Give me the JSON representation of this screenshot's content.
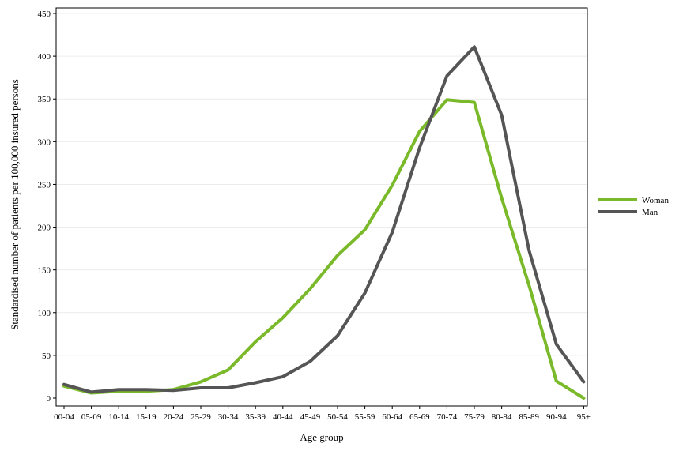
{
  "chart_data": {
    "type": "line",
    "title": "",
    "xlabel": "Age group",
    "ylabel": "Standardised number of patients per 100,000 insured persons",
    "categories": [
      "00-04",
      "05-09",
      "10-14",
      "15-19",
      "20-24",
      "25-29",
      "30-34",
      "35-39",
      "40-44",
      "45-49",
      "50-54",
      "55-59",
      "60-64",
      "65-69",
      "70-74",
      "75-79",
      "80-84",
      "85-89",
      "90-94",
      "95+"
    ],
    "ylim": [
      0,
      450
    ],
    "yticks": [
      0,
      50,
      100,
      150,
      200,
      250,
      300,
      350,
      400,
      450
    ],
    "grid": "horizontal",
    "legend_position": "right",
    "series": [
      {
        "name": "Woman",
        "color": "#7ab929",
        "values": [
          14,
          6,
          8,
          8,
          10,
          19,
          33,
          66,
          94,
          128,
          167,
          197,
          249,
          312,
          349,
          346,
          234,
          132,
          20,
          0
        ]
      },
      {
        "name": "Man",
        "color": "#555555",
        "values": [
          16,
          7,
          10,
          10,
          9,
          12,
          12,
          18,
          25,
          43,
          73,
          123,
          194,
          293,
          377,
          411,
          331,
          173,
          63,
          19
        ]
      }
    ]
  }
}
